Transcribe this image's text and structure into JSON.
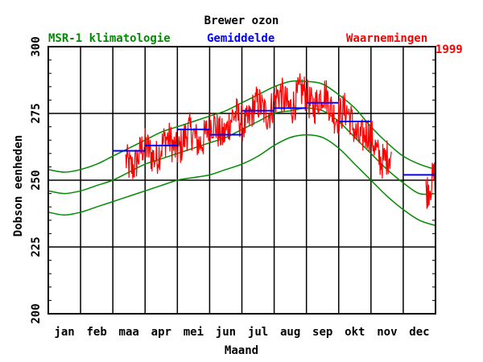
{
  "colors": {
    "climatology": "#008c00",
    "average": "#0000ff",
    "observations": "#ff0000",
    "axis": "#000000",
    "background": "#ffffff"
  },
  "chart_data": {
    "type": "line",
    "title": "Brewer ozon",
    "xlabel": "Maand",
    "ylabel": "Dobson eenheden",
    "year": "1999",
    "xlim": [
      0,
      12
    ],
    "ylim": [
      200,
      300
    ],
    "yticks": [
      200,
      225,
      250,
      275,
      300
    ],
    "months": [
      "jan",
      "feb",
      "maa",
      "apr",
      "mei",
      "jun",
      "jul",
      "aug",
      "sep",
      "okt",
      "nov",
      "dec"
    ],
    "grid": true,
    "legend": {
      "climatology": "MSR-1 klimatologie",
      "average": "Gemiddelde",
      "observations": "Waarnemingen"
    },
    "climatology": {
      "name": "MSR-1 klimatologie",
      "x": [
        0.0,
        0.5,
        1.0,
        1.5,
        2.0,
        2.5,
        3.0,
        3.5,
        4.0,
        4.5,
        5.0,
        5.5,
        6.0,
        6.5,
        7.0,
        7.5,
        8.0,
        8.5,
        9.0,
        9.5,
        10.0,
        10.5,
        11.0,
        11.5,
        12.0
      ],
      "upper": [
        254,
        253,
        254,
        256,
        259,
        262,
        265,
        268,
        270,
        272,
        274,
        276,
        279,
        282,
        285,
        287,
        287,
        286,
        282,
        277,
        270,
        264,
        259,
        256,
        254
      ],
      "mean": [
        246,
        245,
        246,
        248,
        250,
        253,
        256,
        258,
        260,
        262,
        264,
        266,
        269,
        272,
        275,
        276,
        277,
        276,
        272,
        266,
        260,
        254,
        249,
        245,
        245
      ],
      "lower": [
        238,
        237,
        238,
        240,
        242,
        244,
        246,
        248,
        250,
        251,
        252,
        254,
        256,
        259,
        263,
        266,
        267,
        266,
        262,
        256,
        250,
        244,
        239,
        235,
        233
      ]
    },
    "monthly_average": {
      "name": "Gemiddelde",
      "months": [
        3,
        4,
        5,
        6,
        7,
        8,
        9,
        10,
        12
      ],
      "values": [
        261,
        263,
        269,
        267,
        276,
        277,
        279,
        272,
        252
      ]
    },
    "observations": {
      "name": "Waarnemingen",
      "segments": [
        {
          "start": 2.4,
          "end": 10.65
        },
        {
          "start": 11.7,
          "end": 12.0
        }
      ]
    }
  }
}
